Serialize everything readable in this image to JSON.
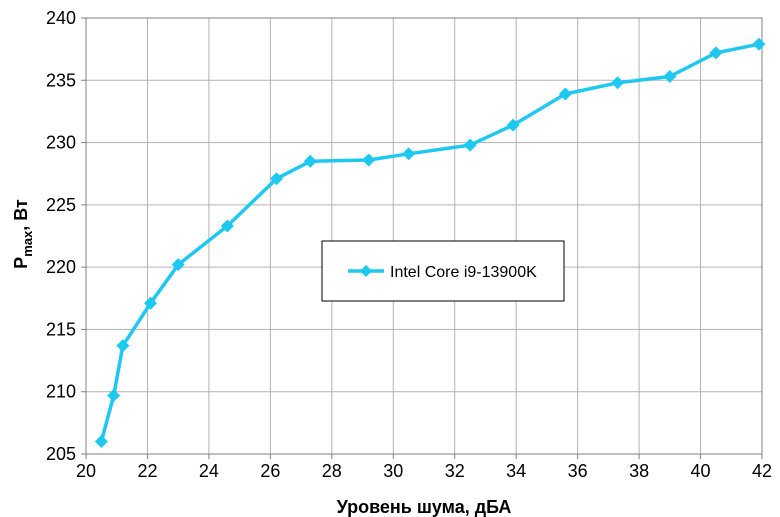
{
  "chart_data": {
    "type": "line",
    "xlabel": "Уровень шума, дБА",
    "ylabel_main": "P",
    "ylabel_sub": "max",
    "ylabel_unit": ", Вт",
    "xlim": [
      20,
      42
    ],
    "ylim": [
      205,
      240
    ],
    "xticks": [
      20,
      22,
      24,
      26,
      28,
      30,
      32,
      34,
      36,
      38,
      40,
      42
    ],
    "yticks": [
      205,
      210,
      215,
      220,
      225,
      230,
      235,
      240
    ],
    "grid": true,
    "legend_position": "center",
    "series": [
      {
        "name": "Intel Core i9-13900K",
        "color": "#1ec8f0",
        "marker": "diamond",
        "x": [
          20.5,
          20.9,
          21.2,
          22.1,
          23.0,
          24.6,
          26.2,
          27.3,
          29.2,
          30.5,
          32.5,
          33.9,
          35.6,
          37.3,
          39.0,
          40.5,
          41.9
        ],
        "y": [
          206.0,
          209.7,
          213.7,
          217.1,
          220.2,
          223.3,
          227.1,
          228.5,
          228.6,
          229.1,
          229.8,
          231.4,
          233.9,
          234.8,
          235.3,
          237.2,
          237.9
        ]
      }
    ]
  }
}
